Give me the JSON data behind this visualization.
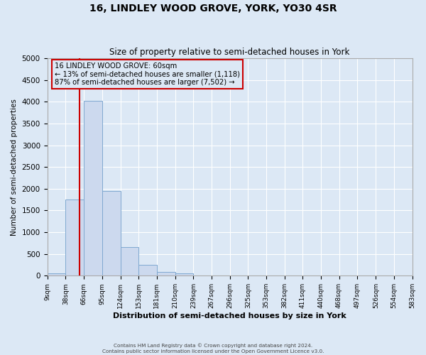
{
  "title": "16, LINDLEY WOOD GROVE, YORK, YO30 4SR",
  "subtitle": "Size of property relative to semi-detached houses in York",
  "xlabel": "Distribution of semi-detached houses by size in York",
  "ylabel": "Number of semi-detached properties",
  "bin_edges": [
    9,
    38,
    66,
    95,
    124,
    153,
    181,
    210,
    239,
    267,
    296,
    325,
    353,
    382,
    411,
    440,
    468,
    497,
    526,
    554,
    583
  ],
  "bin_counts": [
    50,
    1750,
    4020,
    1950,
    660,
    245,
    80,
    55,
    0,
    0,
    0,
    0,
    0,
    0,
    0,
    0,
    0,
    0,
    0,
    0
  ],
  "bar_color": "#ccd9ee",
  "bar_edge_color": "#7fa8d0",
  "property_size": 60,
  "property_line_color": "#cc0000",
  "annotation_box_edge_color": "#cc0000",
  "annotation_lines": [
    "16 LINDLEY WOOD GROVE: 60sqm",
    "← 13% of semi-detached houses are smaller (1,118)",
    "87% of semi-detached houses are larger (7,502) →"
  ],
  "ylim": [
    0,
    5000
  ],
  "yticks": [
    0,
    500,
    1000,
    1500,
    2000,
    2500,
    3000,
    3500,
    4000,
    4500,
    5000
  ],
  "tick_labels": [
    "9sqm",
    "38sqm",
    "66sqm",
    "95sqm",
    "124sqm",
    "153sqm",
    "181sqm",
    "210sqm",
    "239sqm",
    "267sqm",
    "296sqm",
    "325sqm",
    "353sqm",
    "382sqm",
    "411sqm",
    "440sqm",
    "468sqm",
    "497sqm",
    "526sqm",
    "554sqm",
    "583sqm"
  ],
  "footer_line1": "Contains HM Land Registry data © Crown copyright and database right 2024.",
  "footer_line2": "Contains public sector information licensed under the Open Government Licence v3.0.",
  "background_color": "#dce8f5",
  "grid_color": "#ffffff"
}
